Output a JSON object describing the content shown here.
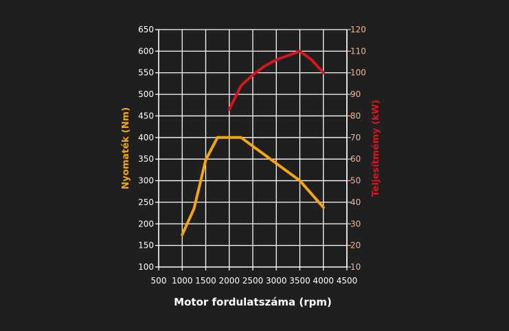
{
  "chart_data": {
    "type": "line",
    "xlabel": "Motor fordulatszáma (rpm)",
    "ylabel_left": "Nyomaték (Nm)",
    "ylabel_right": "Teljesítmémy (kW)",
    "xlim": [
      500,
      4500
    ],
    "ylim_left": [
      100,
      650
    ],
    "ylim_right": [
      10,
      120
    ],
    "x_ticks": [
      500,
      1000,
      1500,
      2000,
      2500,
      3000,
      3500,
      4000,
      4500
    ],
    "y_left_ticks": [
      100,
      150,
      200,
      250,
      300,
      350,
      400,
      450,
      500,
      550,
      600,
      650
    ],
    "y_right_ticks": [
      10,
      20,
      30,
      40,
      50,
      60,
      70,
      80,
      90,
      100,
      110,
      120
    ],
    "grid": true,
    "series": [
      {
        "name": "Nyomaték (Nm)",
        "axis": "left",
        "color": "#f5a50d",
        "x": [
          1000,
          1250,
          1500,
          1750,
          2000,
          2250,
          2500,
          3000,
          3500,
          4000
        ],
        "values": [
          175,
          235,
          348,
          400,
          400,
          400,
          380,
          340,
          300,
          238
        ]
      },
      {
        "name": "Teljesítmémy (kW)",
        "axis": "right",
        "color": "#d8141e",
        "x": [
          2000,
          2250,
          2500,
          2750,
          3000,
          3250,
          3500,
          3750,
          4000
        ],
        "values": [
          83,
          94,
          99,
          103,
          106,
          108,
          110,
          106,
          100
        ]
      }
    ]
  },
  "colors": {
    "background": "#1f1f1f",
    "axis": "#ffffff",
    "grid": "#ffffff",
    "left_accent": "#f5a50d",
    "right_accent": "#d8141e",
    "right_tick_text": "#f2b49a"
  }
}
